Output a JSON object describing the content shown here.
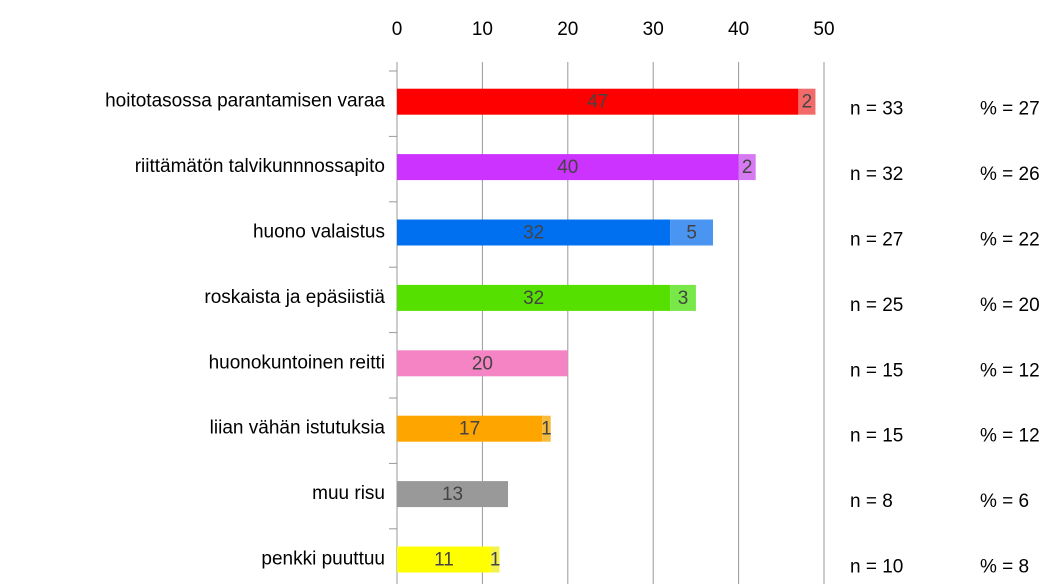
{
  "chart_data": {
    "type": "bar",
    "orientation": "horizontal",
    "stacked": true,
    "categories": [
      "hoitotasossa parantamisen varaa",
      "riittämätön talvikunnnossapito",
      "huono valaistus",
      "roskaista ja epäsiistiä",
      "huonokuntoinen reitti",
      "liian vähän istutuksia",
      "muu risu",
      "penkki puuttuu"
    ],
    "series": [
      {
        "colors": [
          "#ff0000",
          "#cc33ff",
          "#0070f0",
          "#55e000",
          "#f584c4",
          "#ffa500",
          "#999999",
          "#ffff00"
        ],
        "values": [
          47,
          40,
          32,
          32,
          20,
          17,
          13,
          11
        ]
      },
      {
        "colors": [
          "#f26b6b",
          "#d67af2",
          "#4a94f2",
          "#78e848",
          "#f584c4",
          "#f7bb3c",
          "#999999",
          "#f2f24a"
        ],
        "values": [
          2,
          2,
          5,
          3,
          null,
          1,
          null,
          1
        ]
      }
    ],
    "n_labels": [
      "n = 33",
      "n = 32",
      "n = 27",
      "n = 25",
      "n = 15",
      "n = 15",
      "n = 8",
      "n = 10"
    ],
    "pct_labels": [
      "% = 27",
      "% = 26",
      "% = 22",
      "% = 20",
      "% = 12",
      "% = 12",
      "% = 6",
      "% = 8"
    ],
    "xlim": [
      0,
      50
    ],
    "xticks": [
      0,
      10,
      20,
      30,
      40,
      50
    ],
    "grid": true
  }
}
